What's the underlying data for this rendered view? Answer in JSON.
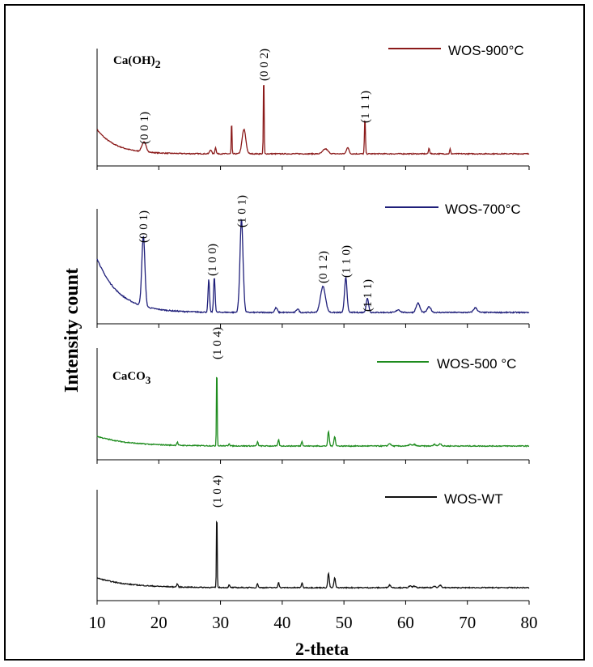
{
  "chart_data": {
    "type": "line",
    "xlabel": "2-theta",
    "ylabel": "Intensity count",
    "xlim": [
      10,
      80
    ],
    "xticks": [
      10,
      20,
      30,
      40,
      50,
      60,
      70,
      80
    ],
    "compound_labels": {
      "calcium_hydroxide": "Ca(OH)",
      "hydroxide_subscript": "2",
      "calcium_carbonate": "CaCO",
      "carbonate_subscript": "3"
    },
    "series": [
      {
        "name": "WOS-900°C",
        "color": "#8b1a1a",
        "baseline": 5,
        "start": 30,
        "decay": 3,
        "peaks": [
          [
            17.6,
            12,
            0.35
          ],
          [
            28.4,
            5,
            0.15
          ],
          [
            29.2,
            8,
            0.1
          ],
          [
            31.8,
            42,
            0.06
          ],
          [
            33.8,
            30,
            0.3
          ],
          [
            37.0,
            105,
            0.06
          ],
          [
            47.0,
            6,
            0.4
          ],
          [
            50.6,
            8,
            0.2
          ],
          [
            53.4,
            45,
            0.08
          ],
          [
            63.8,
            7,
            0.1
          ],
          [
            67.2,
            6,
            0.08
          ]
        ],
        "annotations": [
          {
            "text": "(0 0 1)",
            "x": 17.6
          },
          {
            "text": "(0 0 2)",
            "x": 37.0
          },
          {
            "text": "(1 1 1)",
            "x": 53.4
          }
        ]
      },
      {
        "name": "WOS-700°C",
        "color": "#1f1f7a",
        "baseline": 5,
        "start": 58,
        "decay": 3.5,
        "peaks": [
          [
            17.5,
            75,
            0.25
          ],
          [
            28.1,
            35,
            0.12
          ],
          [
            29.0,
            38,
            0.12
          ],
          [
            33.4,
            100,
            0.25
          ],
          [
            39.0,
            5,
            0.2
          ],
          [
            42.5,
            4,
            0.2
          ],
          [
            46.6,
            28,
            0.4
          ],
          [
            50.3,
            38,
            0.2
          ],
          [
            53.8,
            15,
            0.2
          ],
          [
            58.8,
            3,
            0.3
          ],
          [
            62.0,
            10,
            0.3
          ],
          [
            63.8,
            6,
            0.3
          ],
          [
            71.3,
            5,
            0.3
          ]
        ],
        "annotations": [
          {
            "text": "(0 0 1)",
            "x": 17.5
          },
          {
            "text": "(1 0 0)",
            "x": 28.6
          },
          {
            "text": "(1 0 1)",
            "x": 33.4
          },
          {
            "text": "(0 1 2)",
            "x": 46.6
          },
          {
            "text": "(1 1 0)",
            "x": 50.3
          },
          {
            "text": "(1 1 1)",
            "x": 53.8
          }
        ]
      },
      {
        "name": "WOS-500 °C",
        "color": "#1e8c1e",
        "baseline": 3,
        "start": 12,
        "decay": 5,
        "peaks": [
          [
            23.0,
            4,
            0.1
          ],
          [
            29.4,
            105,
            0.06
          ],
          [
            31.4,
            3,
            0.1
          ],
          [
            36.0,
            5,
            0.1
          ],
          [
            39.4,
            8,
            0.1
          ],
          [
            43.2,
            6,
            0.1
          ],
          [
            47.5,
            18,
            0.12
          ],
          [
            48.5,
            12,
            0.12
          ],
          [
            57.4,
            3,
            0.2
          ],
          [
            60.7,
            2,
            0.2
          ],
          [
            61.4,
            2,
            0.2
          ],
          [
            64.7,
            2,
            0.2
          ],
          [
            65.6,
            3,
            0.2
          ]
        ],
        "annotations": [
          {
            "text": "(1 0 4)",
            "x": 29.4
          }
        ]
      },
      {
        "name": "WOS-WT",
        "color": "#111111",
        "baseline": 3,
        "start": 12,
        "decay": 5,
        "peaks": [
          [
            23.0,
            4,
            0.1
          ],
          [
            29.4,
            100,
            0.06
          ],
          [
            31.4,
            3,
            0.1
          ],
          [
            36.0,
            5,
            0.1
          ],
          [
            39.4,
            7,
            0.1
          ],
          [
            43.2,
            6,
            0.1
          ],
          [
            47.5,
            18,
            0.12
          ],
          [
            48.5,
            12,
            0.12
          ],
          [
            57.4,
            3,
            0.2
          ],
          [
            60.7,
            2,
            0.2
          ],
          [
            61.4,
            2,
            0.2
          ],
          [
            64.7,
            2,
            0.2
          ],
          [
            65.6,
            3,
            0.2
          ]
        ],
        "annotations": [
          {
            "text": "(1 0 4)",
            "x": 29.4
          }
        ]
      }
    ]
  }
}
